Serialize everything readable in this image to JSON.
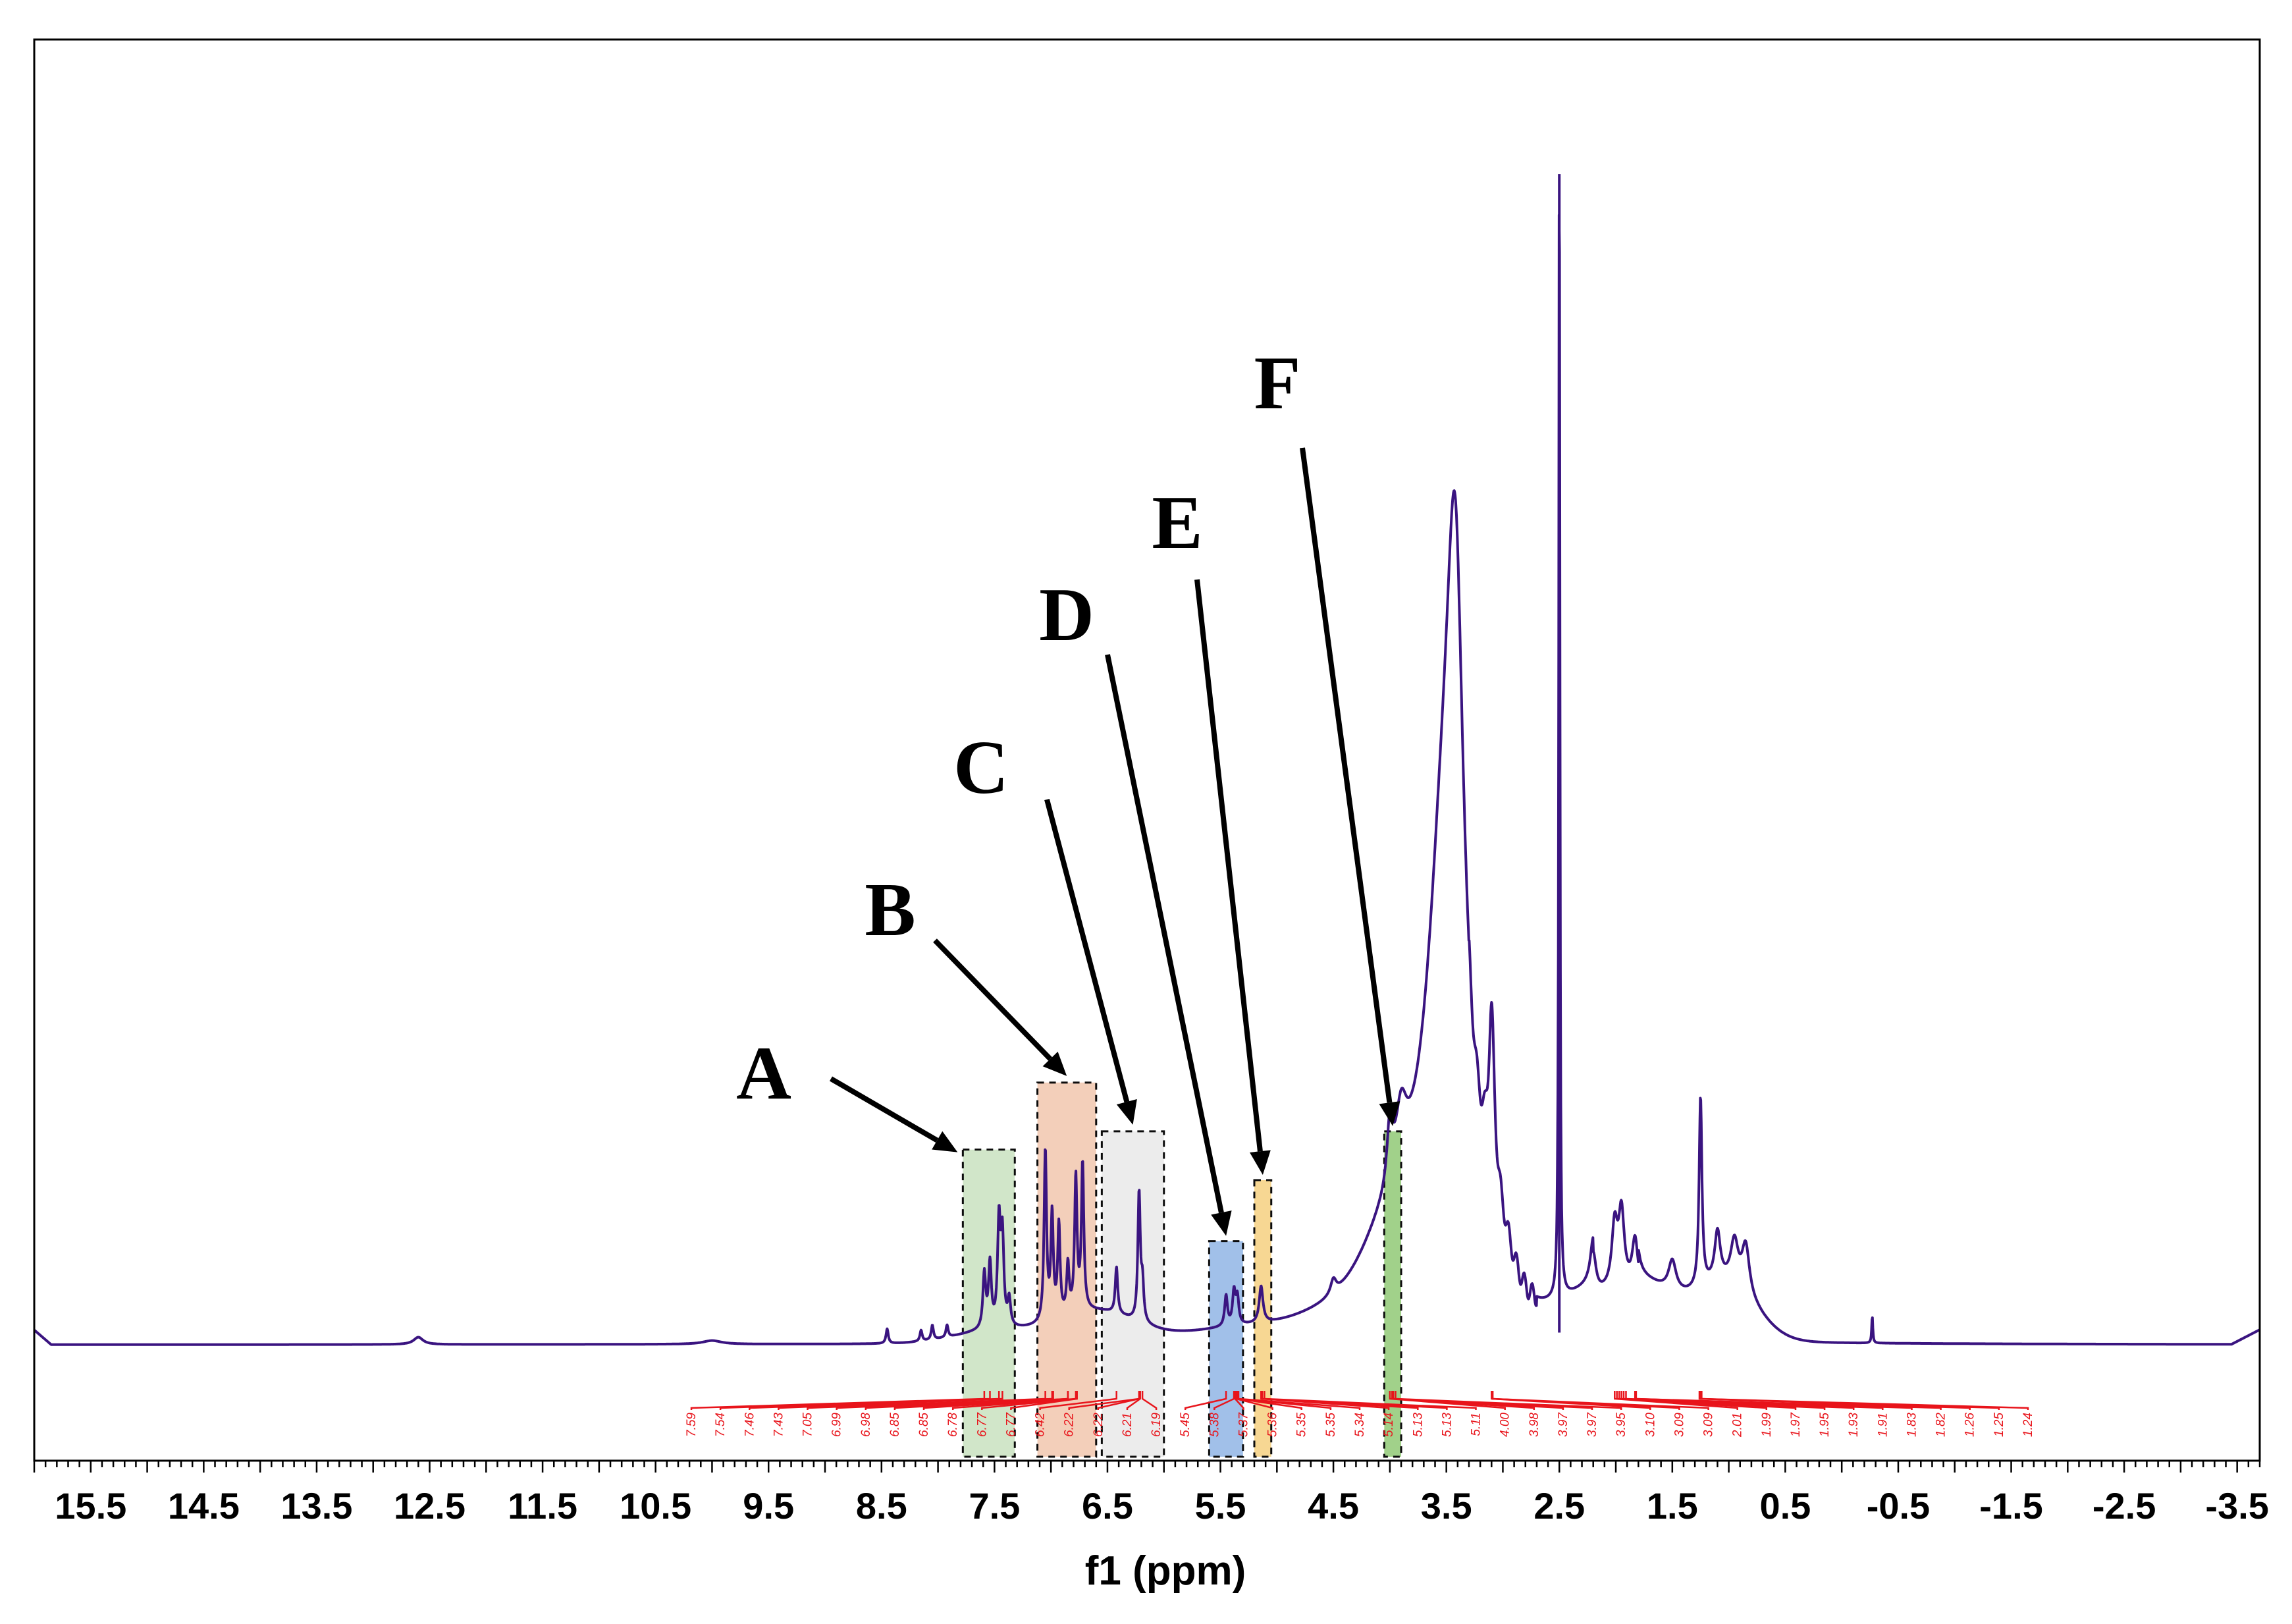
{
  "chart_data": {
    "type": "line",
    "title": "",
    "xlabel": "f1 (ppm)",
    "ylabel": "",
    "xlim": [
      16.0,
      -3.7
    ],
    "x_reversed": true,
    "ylim": [
      -0.12,
      1.0
    ],
    "grid": false,
    "x_ticks": [
      15.5,
      14.5,
      13.5,
      12.5,
      11.5,
      10.5,
      9.5,
      8.5,
      7.5,
      6.5,
      5.5,
      4.5,
      3.5,
      2.5,
      1.5,
      0.5,
      -0.5,
      -1.5,
      -2.5,
      -3.5
    ],
    "x_tick_labels": [
      "15.5",
      "14.5",
      "13.5",
      "12.5",
      "11.5",
      "10.5",
      "9.5",
      "8.5",
      "7.5",
      "6.5",
      "5.5",
      "4.5",
      "3.5",
      "2.5",
      "1.5",
      "0.5",
      "-0.5",
      "-1.5",
      "-2.5",
      "-3.5"
    ],
    "baseline": 0.0,
    "peaks": [
      {
        "ppm": 12.6,
        "height": 0.006,
        "width": 0.05
      },
      {
        "ppm": 10.0,
        "height": 0.003,
        "width": 0.1
      },
      {
        "ppm": 8.45,
        "height": 0.012,
        "width": 0.012
      },
      {
        "ppm": 8.15,
        "height": 0.009,
        "width": 0.012
      },
      {
        "ppm": 8.05,
        "height": 0.012,
        "width": 0.012
      },
      {
        "ppm": 7.92,
        "height": 0.01,
        "width": 0.012
      },
      {
        "ppm": 7.59,
        "height": 0.045,
        "width": 0.015
      },
      {
        "ppm": 7.54,
        "height": 0.052,
        "width": 0.015
      },
      {
        "ppm": 7.46,
        "height": 0.085,
        "width": 0.015
      },
      {
        "ppm": 7.43,
        "height": 0.072,
        "width": 0.015
      },
      {
        "ppm": 7.37,
        "height": 0.022,
        "width": 0.015
      },
      {
        "ppm": 7.05,
        "height": 0.14,
        "width": 0.013
      },
      {
        "ppm": 6.99,
        "height": 0.085,
        "width": 0.013
      },
      {
        "ppm": 6.93,
        "height": 0.075,
        "width": 0.013
      },
      {
        "ppm": 6.85,
        "height": 0.04,
        "width": 0.013
      },
      {
        "ppm": 6.78,
        "height": 0.11,
        "width": 0.013
      },
      {
        "ppm": 6.72,
        "height": 0.12,
        "width": 0.013
      },
      {
        "ppm": 6.42,
        "height": 0.038,
        "width": 0.013
      },
      {
        "ppm": 6.22,
        "height": 0.105,
        "width": 0.013
      },
      {
        "ppm": 6.19,
        "height": 0.03,
        "width": 0.013
      },
      {
        "ppm": 5.45,
        "height": 0.025,
        "width": 0.015
      },
      {
        "ppm": 5.38,
        "height": 0.027,
        "width": 0.015
      },
      {
        "ppm": 5.35,
        "height": 0.022,
        "width": 0.015
      },
      {
        "ppm": 5.14,
        "height": 0.03,
        "width": 0.02
      },
      {
        "ppm": 4.5,
        "height": 0.012,
        "width": 0.03
      },
      {
        "ppm": 4.0,
        "height": 0.05,
        "width": 0.03
      },
      {
        "ppm": 3.9,
        "height": 0.05,
        "width": 0.06
      },
      {
        "ppm": 3.52,
        "height": 0.35,
        "width": 0.2
      },
      {
        "ppm": 3.42,
        "height": 0.4,
        "width": 0.09
      },
      {
        "ppm": 3.1,
        "height": 0.13,
        "width": 0.03
      },
      {
        "ppm": 2.5,
        "height": 0.96,
        "width": 0.006
      },
      {
        "ppm": 2.2,
        "height": 0.035,
        "width": 0.03
      },
      {
        "ppm": 2.01,
        "height": 0.05,
        "width": 0.03
      },
      {
        "ppm": 1.95,
        "height": 0.06,
        "width": 0.03
      },
      {
        "ppm": 1.83,
        "height": 0.04,
        "width": 0.03
      },
      {
        "ppm": 1.5,
        "height": 0.025,
        "width": 0.04
      },
      {
        "ppm": 1.25,
        "height": 0.155,
        "width": 0.015
      },
      {
        "ppm": 1.1,
        "height": 0.04,
        "width": 0.03
      },
      {
        "ppm": 0.95,
        "height": 0.035,
        "width": 0.04
      },
      {
        "ppm": 0.85,
        "height": 0.04,
        "width": 0.04
      },
      {
        "ppm": -0.27,
        "height": 0.022,
        "width": 0.006
      }
    ],
    "regions": [
      {
        "label": "A",
        "x_from": 7.78,
        "x_to": 7.32,
        "top": 0.16,
        "color": "#cfe5c7"
      },
      {
        "label": "B",
        "x_from": 7.12,
        "x_to": 6.6,
        "top": 0.215,
        "color": "#f3cdb7"
      },
      {
        "label": "C",
        "x_from": 6.55,
        "x_to": 6.0,
        "top": 0.175,
        "color": "#ececec"
      },
      {
        "label": "D",
        "x_from": 5.6,
        "x_to": 5.3,
        "top": 0.085,
        "color": "#9dbde8"
      },
      {
        "label": "E",
        "x_from": 5.2,
        "x_to": 5.05,
        "top": 0.135,
        "color": "#f7d58e"
      },
      {
        "label": "F",
        "x_from": 4.05,
        "x_to": 3.9,
        "top": 0.175,
        "color": "#9ccf84"
      }
    ],
    "peak_labels": [
      "7.59",
      "7.54",
      "7.46",
      "7.43",
      "7.05",
      "6.99",
      "6.98",
      "6.85",
      "6.85",
      "6.78",
      "6.77",
      "6.77",
      "6.42",
      "6.22",
      "6.22",
      "6.21",
      "6.19",
      "5.45",
      "5.38",
      "5.37",
      "5.36",
      "5.35",
      "5.35",
      "5.34",
      "5.14",
      "5.13",
      "5.13",
      "5.11",
      "4.00",
      "3.98",
      "3.97",
      "3.97",
      "3.95",
      "3.10",
      "3.09",
      "3.09",
      "2.01",
      "1.99",
      "1.97",
      "1.95",
      "1.93",
      "1.91",
      "1.83",
      "1.82",
      "1.26",
      "1.25",
      "1.24"
    ]
  }
}
